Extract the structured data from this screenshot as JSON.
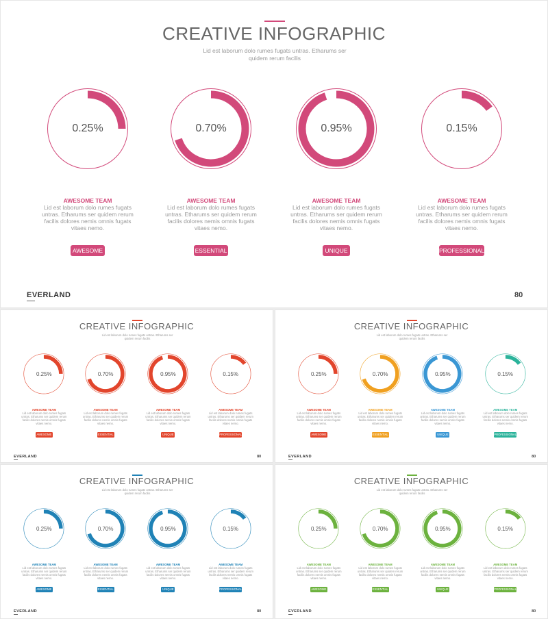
{
  "slides": [
    {
      "title": "CREATIVE INFOGRAPHIC",
      "subtitle": "Lid est laborum dolo rumes fugats untras. Etharums ser quidem rerum facilis",
      "brand": "EVERLAND",
      "page": "80",
      "colors": [
        "#d2497a",
        "#d2497a",
        "#d2497a",
        "#d2497a"
      ],
      "line_color": "#d2497a",
      "items": [
        {
          "percent_label": "0.25%",
          "fill": 0.25,
          "heading": "AWESOME TEAM",
          "text": "Lid est laborum dolo rumes fugats untras. Etharums ser quidem rerum facilis dolores nemis omnis fugats vitaes nemo.",
          "button": "AWESOME"
        },
        {
          "percent_label": "0.70%",
          "fill": 0.7,
          "heading": "AWESOME TEAM",
          "text": "Lid est laborum dolo rumes fugats untras. Etharums ser quidem rerum facilis dolores nemis omnis fugats vitaes nemo.",
          "button": "ESSENTIAL"
        },
        {
          "percent_label": "0.95%",
          "fill": 0.95,
          "heading": "AWESOME TEAM",
          "text": "Lid est laborum dolo rumes fugats untras. Etharums ser quidem rerum facilis dolores nemis omnis fugats vitaes nemo.",
          "button": "UNIQUE"
        },
        {
          "percent_label": "0.15%",
          "fill": 0.15,
          "heading": "AWESOME TEAM",
          "text": "Lid est laborum dolo rumes fugats untras. Etharums ser quidem rerum facilis dolores nemis omnis fugats vitaes nemo.",
          "button": "PROFESSIONAL"
        }
      ]
    },
    {
      "title": "CREATIVE INFOGRAPHIC",
      "subtitle": "Lid est laborum dolo rumes fugats untras. Etharums ser quidem rerum facilis",
      "brand": "EVERLAND",
      "page": "80",
      "colors": [
        "#e2452c",
        "#e2452c",
        "#e2452c",
        "#e2452c"
      ],
      "line_color": "#e2452c",
      "items": [
        {
          "percent_label": "0.25%",
          "fill": 0.25,
          "heading": "AWESOME TEAM",
          "text": "Lid est laborum dolo rumes fugats untras. Etharums ser quidem rerum facilis dolores nemis omnis fugats vitaes nemo.",
          "button": "AWESOME"
        },
        {
          "percent_label": "0.70%",
          "fill": 0.7,
          "heading": "AWESOME TEAM",
          "text": "Lid est laborum dolo rumes fugats untras. Etharums ser quidem rerum facilis dolores nemis omnis fugats vitaes nemo.",
          "button": "ESSENTIAL"
        },
        {
          "percent_label": "0.95%",
          "fill": 0.95,
          "heading": "AWESOME TEAM",
          "text": "Lid est laborum dolo rumes fugats untras. Etharums ser quidem rerum facilis dolores nemis omnis fugats vitaes nemo.",
          "button": "UNIQUE"
        },
        {
          "percent_label": "0.15%",
          "fill": 0.15,
          "heading": "AWESOME TEAM",
          "text": "Lid est laborum dolo rumes fugats untras. Etharums ser quidem rerum facilis dolores nemis omnis fugats vitaes nemo.",
          "button": "PROFESSIONAL"
        }
      ]
    },
    {
      "title": "CREATIVE INFOGRAPHIC",
      "subtitle": "Lid est laborum dolo rumes fugats untras. Etharums ser quidem rerum facilis",
      "brand": "EVERLAND",
      "page": "80",
      "colors": [
        "#e2452c",
        "#f0a020",
        "#3a97d4",
        "#2bb39b"
      ],
      "line_color": "#e2452c",
      "items": [
        {
          "percent_label": "0.25%",
          "fill": 0.25,
          "heading": "AWESOME TEAM",
          "text": "Lid est laborum dolo rumes fugats untras. Etharums ser quidem rerum facilis dolores nemis omnis fugats vitaes nemo.",
          "button": "AWESOME"
        },
        {
          "percent_label": "0.70%",
          "fill": 0.7,
          "heading": "AWESOME TEAM",
          "text": "Lid est laborum dolo rumes fugats untras. Etharums ser quidem rerum facilis dolores nemis omnis fugats vitaes nemo.",
          "button": "ESSENTIAL"
        },
        {
          "percent_label": "0.95%",
          "fill": 0.95,
          "heading": "AWESOME TEAM",
          "text": "Lid est laborum dolo rumes fugats untras. Etharums ser quidem rerum facilis dolores nemis omnis fugats vitaes nemo.",
          "button": "UNIQUE"
        },
        {
          "percent_label": "0.15%",
          "fill": 0.15,
          "heading": "AWESOME TEAM",
          "text": "Lid est laborum dolo rumes fugats untras. Etharums ser quidem rerum facilis dolores nemis omnis fugats vitaes nemo.",
          "button": "PROFESSIONAL"
        }
      ]
    },
    {
      "title": "CREATIVE INFOGRAPHIC",
      "subtitle": "Lid est laborum dolo rumes fugats untras. Etharums ser quidem rerum facilis",
      "brand": "EVERLAND",
      "page": "80",
      "colors": [
        "#1f82b6",
        "#1f82b6",
        "#1f82b6",
        "#1f82b6"
      ],
      "line_color": "#1f82b6",
      "items": [
        {
          "percent_label": "0.25%",
          "fill": 0.25,
          "heading": "AWESOME TEAM",
          "text": "Lid est laborum dolo rumes fugats untras. Etharums ser quidem rerum facilis dolores nemis omnis fugats vitaes nemo.",
          "button": "AWESOME"
        },
        {
          "percent_label": "0.70%",
          "fill": 0.7,
          "heading": "AWESOME TEAM",
          "text": "Lid est laborum dolo rumes fugats untras. Etharums ser quidem rerum facilis dolores nemis omnis fugats vitaes nemo.",
          "button": "ESSENTIAL"
        },
        {
          "percent_label": "0.95%",
          "fill": 0.95,
          "heading": "AWESOME TEAM",
          "text": "Lid est laborum dolo rumes fugats untras. Etharums ser quidem rerum facilis dolores nemis omnis fugats vitaes nemo.",
          "button": "UNIQUE"
        },
        {
          "percent_label": "0.15%",
          "fill": 0.15,
          "heading": "AWESOME TEAM",
          "text": "Lid est laborum dolo rumes fugats untras. Etharums ser quidem rerum facilis dolores nemis omnis fugats vitaes nemo.",
          "button": "PROFESSIONAL"
        }
      ]
    },
    {
      "title": "CREATIVE INFOGRAPHIC",
      "subtitle": "Lid est laborum dolo rumes fugats untras. Etharums ser quidem rerum facilis",
      "brand": "EVERLAND",
      "page": "80",
      "colors": [
        "#6cb23e",
        "#6cb23e",
        "#6cb23e",
        "#6cb23e"
      ],
      "line_color": "#6cb23e",
      "items": [
        {
          "percent_label": "0.25%",
          "fill": 0.25,
          "heading": "AWESOME TEAM",
          "text": "Lid est laborum dolo rumes fugats untras. Etharums ser quidem rerum facilis dolores nemis omnis fugats vitaes nemo.",
          "button": "AWESOME"
        },
        {
          "percent_label": "0.70%",
          "fill": 0.7,
          "heading": "AWESOME TEAM",
          "text": "Lid est laborum dolo rumes fugats untras. Etharums ser quidem rerum facilis dolores nemis omnis fugats vitaes nemo.",
          "button": "ESSENTIAL"
        },
        {
          "percent_label": "0.95%",
          "fill": 0.95,
          "heading": "AWESOME TEAM",
          "text": "Lid est laborum dolo rumes fugats untras. Etharums ser quidem rerum facilis dolores nemis omnis fugats vitaes nemo.",
          "button": "UNIQUE"
        },
        {
          "percent_label": "0.15%",
          "fill": 0.15,
          "heading": "AWESOME TEAM",
          "text": "Lid est laborum dolo rumes fugats untras. Etharums ser quidem rerum facilis dolores nemis omnis fugats vitaes nemo.",
          "button": "PROFESSIONAL"
        }
      ]
    }
  ]
}
